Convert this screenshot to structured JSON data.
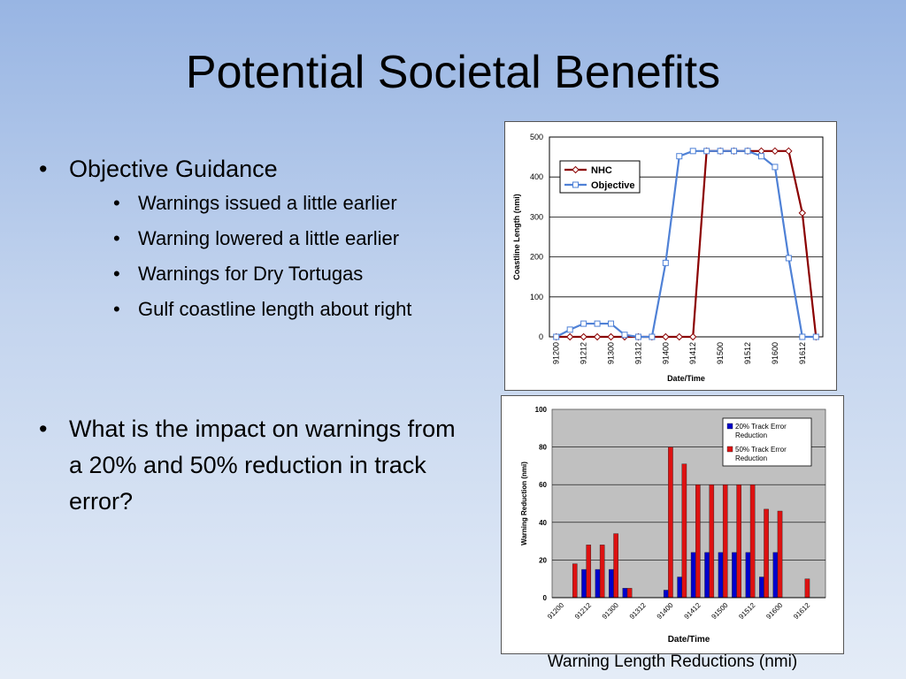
{
  "slide": {
    "title": "Potential Societal Benefits",
    "bullets": [
      {
        "text": "Objective Guidance",
        "sub": [
          "Warnings issued a little earlier",
          "Warning lowered a little earlier",
          "Warnings for Dry Tortugas",
          "Gulf coastline length about right"
        ]
      },
      {
        "text": "What is the impact on warnings from a 20% and 50% reduction in track error?",
        "sub": []
      }
    ],
    "caption": "Warning Length Reductions (nmi)"
  },
  "chart_data": [
    {
      "type": "line",
      "title": "",
      "xlabel": "Date/Time",
      "ylabel": "Coastline Length (nmi)",
      "ylim": [
        0,
        500
      ],
      "yticks": [
        0,
        100,
        200,
        300,
        400,
        500
      ],
      "x": [
        "91200",
        "91206",
        "91212",
        "91218",
        "91300",
        "91306",
        "91312",
        "91318",
        "91400",
        "91406",
        "91412",
        "91418",
        "91500",
        "91506",
        "91512",
        "91518",
        "91600",
        "91606",
        "91612",
        "91618"
      ],
      "x_tick_labels": [
        "91200",
        "91212",
        "91300",
        "91312",
        "91400",
        "91412",
        "91500",
        "91512",
        "91600",
        "91612"
      ],
      "grid": "horizontal",
      "legend": "top-left",
      "series": [
        {
          "name": "NHC",
          "color": "#8b0000",
          "marker": "diamond",
          "values": [
            0,
            0,
            0,
            0,
            0,
            0,
            0,
            0,
            0,
            0,
            0,
            465,
            465,
            465,
            465,
            465,
            465,
            465,
            310,
            0
          ]
        },
        {
          "name": "Objective",
          "color": "#4f81d6",
          "marker": "square",
          "values": [
            0,
            18,
            33,
            33,
            33,
            5,
            0,
            0,
            185,
            452,
            465,
            465,
            465,
            465,
            465,
            452,
            425,
            197,
            0,
            0
          ]
        }
      ]
    },
    {
      "type": "bar",
      "title": "",
      "xlabel": "Date/Time",
      "ylabel": "Warning Reduction (nmi)",
      "ylim": [
        0,
        100
      ],
      "yticks": [
        0,
        20,
        40,
        60,
        80,
        100
      ],
      "categories": [
        "91200",
        "91206",
        "91212",
        "91218",
        "91300",
        "91306",
        "91312",
        "91318",
        "91400",
        "91406",
        "91412",
        "91418",
        "91500",
        "91506",
        "91512",
        "91518",
        "91600",
        "91606",
        "91612",
        "91618"
      ],
      "x_tick_labels": [
        "91200",
        "91212",
        "91300",
        "91312",
        "91400",
        "91412",
        "91500",
        "91512",
        "91600",
        "91612"
      ],
      "grid": "horizontal",
      "legend": "top-right",
      "series": [
        {
          "name": "20% Track Error Reduction",
          "color": "#0000cc",
          "values": [
            0,
            0,
            15,
            15,
            15,
            5,
            0,
            0,
            4,
            11,
            24,
            24,
            24,
            24,
            24,
            11,
            24,
            0,
            0,
            0
          ]
        },
        {
          "name": "50% Track Error Reduction",
          "color": "#dd1111",
          "values": [
            0,
            18,
            28,
            28,
            34,
            5,
            0,
            0,
            80,
            71,
            60,
            60,
            60,
            60,
            60,
            47,
            46,
            0,
            10,
            0
          ]
        }
      ]
    }
  ]
}
